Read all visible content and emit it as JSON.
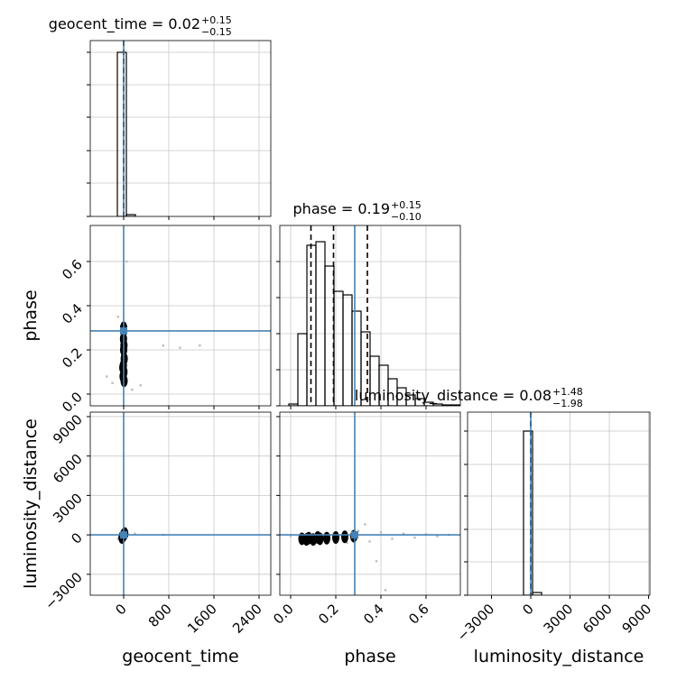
{
  "chart_data": [
    {
      "type": "histogram",
      "title": "geocent_time = 0.02",
      "title_upper": "+0.15",
      "title_lower": "−0.15",
      "bins": [
        -112,
        48,
        208
      ],
      "counts": [
        182,
        2
      ],
      "color": "#000000",
      "quantiles": [
        -0.13,
        0.02,
        0.17
      ],
      "truth": 0,
      "truth_color": "#4682b4",
      "xlim": [
        -592,
        2608
      ],
      "ylim": [
        0,
        195
      ],
      "xticks": [
        0,
        800,
        1600,
        2400
      ],
      "yticks": [
        0,
        37,
        73,
        110,
        146,
        182
      ],
      "grid": true
    },
    {
      "type": "histogram",
      "title": "phase = 0.19",
      "title_upper": "+0.15",
      "title_lower": "−0.10",
      "bins": [
        -0.008,
        0.032,
        0.072,
        0.112,
        0.152,
        0.192,
        0.232,
        0.272,
        0.312,
        0.352,
        0.392,
        0.432,
        0.472,
        0.512,
        0.552,
        0.592,
        0.632,
        0.672,
        0.712,
        0.752
      ],
      "counts": [
        2,
        80,
        178,
        182,
        155,
        127,
        123,
        105,
        82,
        55,
        45,
        30,
        20,
        12,
        8,
        4,
        2,
        1,
        1
      ],
      "color": "#000000",
      "quantiles": [
        0.09,
        0.19,
        0.34
      ],
      "truth": 0.284,
      "truth_color": "#4682b4",
      "xlim": [
        -0.048,
        0.752
      ],
      "ylim": [
        0,
        200
      ],
      "xticks": [
        0,
        0.2,
        0.4,
        0.6
      ],
      "yticks": [
        0,
        40,
        80,
        120,
        160
      ],
      "grid": true
    },
    {
      "type": "histogram",
      "title": "luminosity_distance = 0.08",
      "title_upper": "+1.48",
      "title_lower": "−1.98",
      "bins": [
        -554,
        136,
        826
      ],
      "counts": [
        182,
        3
      ],
      "color": "#000000",
      "quantiles": [
        -1.9,
        0.08,
        1.56
      ],
      "truth": 0,
      "truth_color": "#4682b4",
      "xlim": [
        -4830,
        9100
      ],
      "ylim": [
        0,
        203
      ],
      "xticks": [
        {
          "value": -3000,
          "label": "−3000"
        },
        0,
        3000,
        6000,
        9000
      ],
      "yticks": [
        0,
        37,
        73,
        110,
        145,
        182
      ],
      "xlabel": "luminosity_distance",
      "grid": true
    },
    {
      "type": "scatter",
      "ylabel": "phase",
      "truth_x": 0,
      "truth_y": 0.286,
      "truth_color": "#4682b4",
      "x": [
        700,
        1000,
        1350,
        -300,
        -200,
        150,
        50,
        -100,
        300
      ],
      "y": [
        0.22,
        0.21,
        0.22,
        0.08,
        0.05,
        0.02,
        0.6,
        0.35,
        0.04
      ],
      "color": "#bbbbbb",
      "core_x": [
        -10,
        5,
        -5,
        10,
        0,
        -15,
        8,
        -3,
        0,
        5
      ],
      "core_y": [
        0.08,
        0.1,
        0.13,
        0.16,
        0.2,
        0.12,
        0.06,
        0.25,
        0.3,
        0.22
      ],
      "core_color": "#000000",
      "xlim": [
        -592,
        2608
      ],
      "ylim": [
        -0.053,
        0.763
      ],
      "xticks": [
        0,
        800,
        1600,
        2400
      ],
      "yticks": [
        {
          "value": 0,
          "label": "0.0"
        },
        0.2,
        0.4,
        0.6
      ],
      "grid": true
    },
    {
      "type": "scatter",
      "xlabel": "geocent_time",
      "ylabel": "luminosity_distance",
      "truth_x": 0,
      "truth_y": 0,
      "truth_color": "#4682b4",
      "x": [
        700,
        -100,
        200
      ],
      "y": [
        0,
        -300,
        100
      ],
      "color": "#bbbbbb",
      "core_x": [
        -30,
        0,
        20,
        -10,
        10
      ],
      "core_y": [
        -200,
        0,
        100,
        -100,
        50
      ],
      "core_color": "#000000",
      "xlim": [
        -592,
        2608
      ],
      "ylim": [
        -4590,
        9340
      ],
      "xticks": [
        0,
        800,
        1600,
        2400
      ],
      "yticks": [
        {
          "value": -3000,
          "label": "−3000"
        },
        0,
        3000,
        6000,
        9000
      ],
      "grid": true
    },
    {
      "type": "scatter",
      "xlabel": "phase",
      "truth_x": 0.284,
      "truth_y": 0,
      "truth_color": "#4682b4",
      "x": [
        0.3,
        0.35,
        0.4,
        0.45,
        0.5,
        0.55,
        0.6,
        0.65,
        0.7,
        0.38,
        0.42,
        0.33,
        0.25,
        0.0
      ],
      "y": [
        300,
        -500,
        200,
        -300,
        100,
        -200,
        50,
        -100,
        0,
        -2000,
        -4200,
        800,
        -600,
        -100
      ],
      "color": "#bbbbbb",
      "core_x": [
        0.05,
        0.08,
        0.1,
        0.13,
        0.16,
        0.2,
        0.24,
        0.28,
        0.12,
        0.07
      ],
      "core_y": [
        -300,
        -250,
        -350,
        -300,
        -250,
        -200,
        -150,
        -100,
        -200,
        -350
      ],
      "core_color": "#000000",
      "xlim": [
        -0.048,
        0.752
      ],
      "ylim": [
        -4590,
        9340
      ],
      "xticks": [
        {
          "value": 0,
          "label": "0.0"
        },
        0.2,
        0.4,
        0.6
      ],
      "yticks": [
        -3000,
        0,
        3000,
        6000,
        9000
      ],
      "grid": true
    }
  ]
}
